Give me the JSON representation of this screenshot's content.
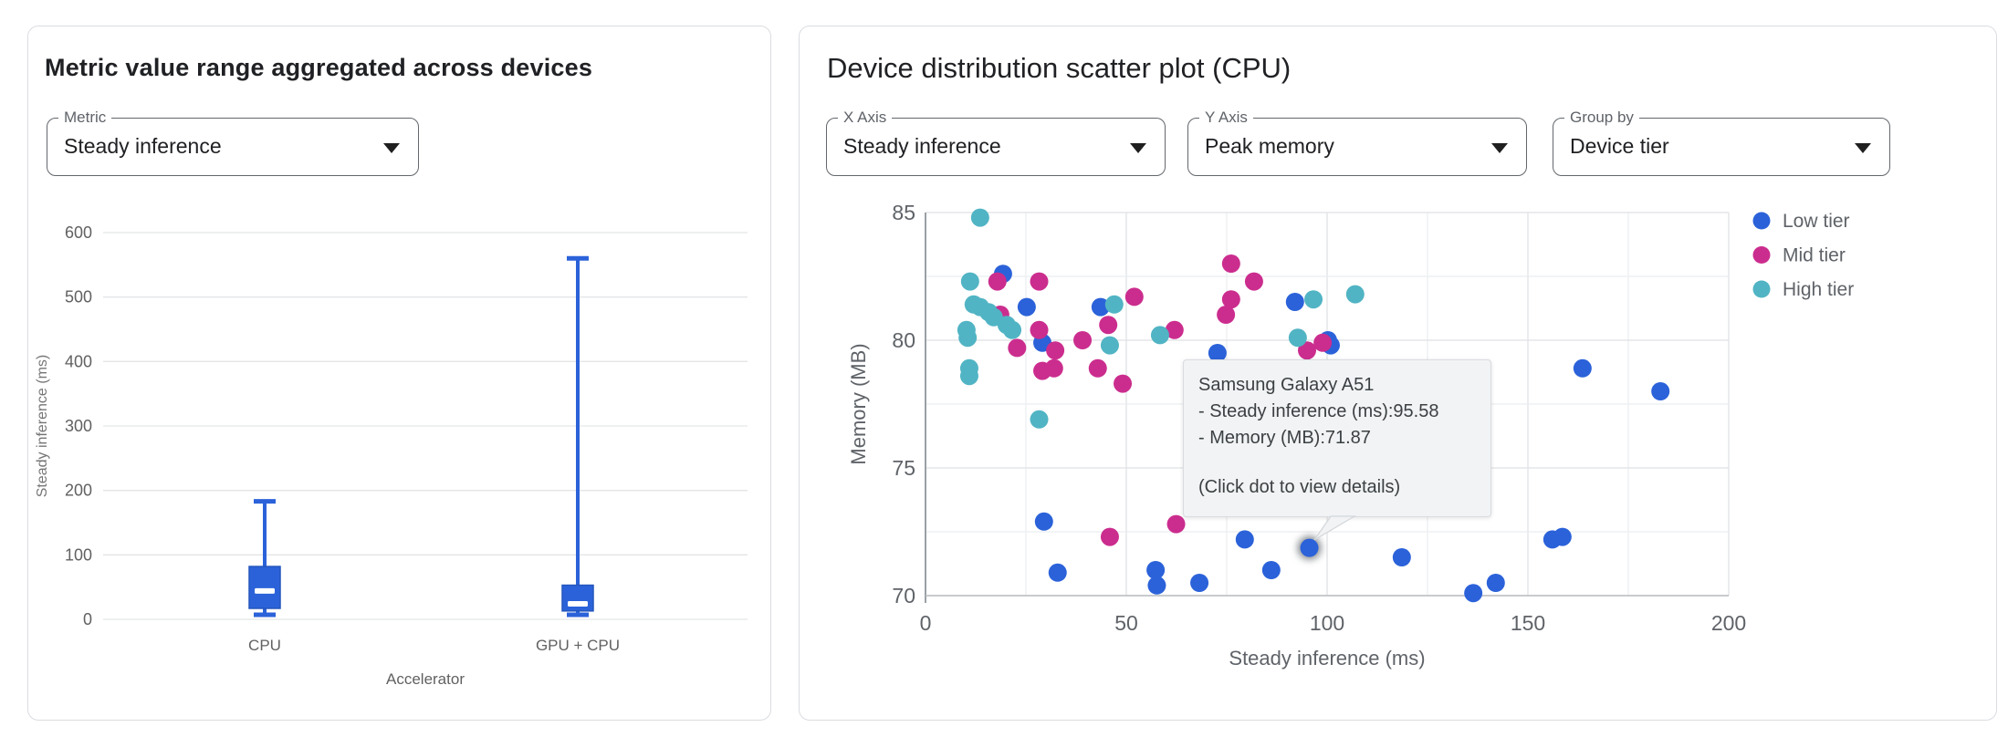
{
  "ui": {
    "left_panel": {
      "title": "Metric value range aggregated across devices",
      "metric_dropdown": {
        "label": "Metric",
        "value": "Steady inference"
      }
    },
    "right_panel": {
      "title": "Device distribution scatter plot (CPU)",
      "x_axis_dropdown": {
        "label": "X Axis",
        "value": "Steady inference"
      },
      "y_axis_dropdown": {
        "label": "Y Axis",
        "value": "Peak memory"
      },
      "group_by_dropdown": {
        "label": "Group by",
        "value": "Device tier"
      },
      "tooltip": {
        "device": "Samsung Galaxy A51",
        "line1": "- Steady inference (ms):95.58",
        "line2": "- Memory (MB):71.87",
        "footer": "(Click dot to view details)"
      }
    }
  },
  "chart_data": [
    {
      "type": "boxplot",
      "title": "Metric value range aggregated across devices",
      "xlabel": "Accelerator",
      "ylabel": "Steady inference (ms)",
      "ylim": [
        0,
        620
      ],
      "y_ticks": [
        0,
        100,
        200,
        300,
        400,
        500,
        600
      ],
      "categories": [
        "CPU",
        "GPU + CPU"
      ],
      "boxes": [
        {
          "category": "CPU",
          "min": 7,
          "q1": 17,
          "median": 44,
          "q3": 82,
          "max": 183
        },
        {
          "category": "GPU + CPU",
          "min": 7,
          "q1": 13,
          "median": 24,
          "q3": 53,
          "max": 560
        }
      ],
      "box_color": "#2b62d9",
      "grid": true
    },
    {
      "type": "scatter",
      "title": "Device distribution scatter plot (CPU)",
      "xlabel": "Steady inference (ms)",
      "ylabel": "Memory (MB)",
      "xlim": [
        0,
        200
      ],
      "ylim": [
        70,
        85
      ],
      "x_ticks": [
        0,
        50,
        100,
        150,
        200
      ],
      "y_ticks": [
        70,
        75,
        80,
        85
      ],
      "x_minor_step": 25,
      "y_minor_step": 2.5,
      "grid": true,
      "legend_position": "right",
      "series": [
        {
          "name": "Low tier",
          "color": "#2b62d9",
          "points": [
            [
              19.3,
              82.6
            ],
            [
              25.2,
              81.3
            ],
            [
              43.6,
              81.3
            ],
            [
              29.1,
              79.9
            ],
            [
              92.0,
              81.5
            ],
            [
              72.7,
              79.5
            ],
            [
              100.2,
              80.0
            ],
            [
              100.9,
              79.8
            ],
            [
              95.58,
              71.87
            ],
            [
              29.5,
              72.9
            ],
            [
              32.9,
              70.9
            ],
            [
              57.3,
              71.0
            ],
            [
              57.6,
              70.4
            ],
            [
              68.2,
              70.5
            ],
            [
              79.5,
              72.2
            ],
            [
              86.1,
              71.0
            ],
            [
              118.6,
              71.5
            ],
            [
              136.4,
              70.1
            ],
            [
              142.0,
              70.5
            ],
            [
              156.1,
              72.2
            ],
            [
              158.6,
              72.3
            ],
            [
              163.6,
              78.9
            ],
            [
              183.0,
              78.0
            ]
          ]
        },
        {
          "name": "Mid tier",
          "color": "#cb2d8e",
          "points": [
            [
              17.9,
              82.3
            ],
            [
              28.3,
              82.3
            ],
            [
              18.6,
              81.0
            ],
            [
              28.3,
              80.4
            ],
            [
              22.8,
              79.7
            ],
            [
              32.3,
              79.6
            ],
            [
              29.1,
              78.8
            ],
            [
              32.0,
              78.9
            ],
            [
              39.1,
              80.0
            ],
            [
              42.9,
              78.9
            ],
            [
              49.1,
              78.3
            ],
            [
              45.5,
              80.6
            ],
            [
              52.0,
              81.7
            ],
            [
              62.0,
              80.4
            ],
            [
              76.1,
              83.0
            ],
            [
              81.8,
              82.3
            ],
            [
              76.1,
              81.6
            ],
            [
              74.8,
              81.0
            ],
            [
              95.0,
              79.6
            ],
            [
              98.9,
              79.9
            ],
            [
              45.9,
              72.3
            ],
            [
              62.4,
              72.8
            ]
          ]
        },
        {
          "name": "High tier",
          "color": "#51b4c4",
          "points": [
            [
              13.6,
              84.8
            ],
            [
              11.1,
              82.3
            ],
            [
              12.0,
              81.4
            ],
            [
              13.6,
              81.3
            ],
            [
              15.7,
              81.1
            ],
            [
              17.0,
              80.9
            ],
            [
              20.2,
              80.6
            ],
            [
              21.6,
              80.4
            ],
            [
              10.2,
              80.4
            ],
            [
              10.5,
              80.1
            ],
            [
              10.9,
              78.9
            ],
            [
              10.9,
              78.6
            ],
            [
              45.9,
              79.8
            ],
            [
              47.0,
              81.4
            ],
            [
              58.4,
              80.2
            ],
            [
              28.3,
              76.9
            ],
            [
              92.7,
              80.1
            ],
            [
              96.6,
              81.6
            ],
            [
              107.0,
              81.8
            ]
          ]
        }
      ],
      "highlighted_point": {
        "series": "Low tier",
        "x": 95.58,
        "y": 71.87,
        "device": "Samsung Galaxy A51"
      }
    }
  ]
}
